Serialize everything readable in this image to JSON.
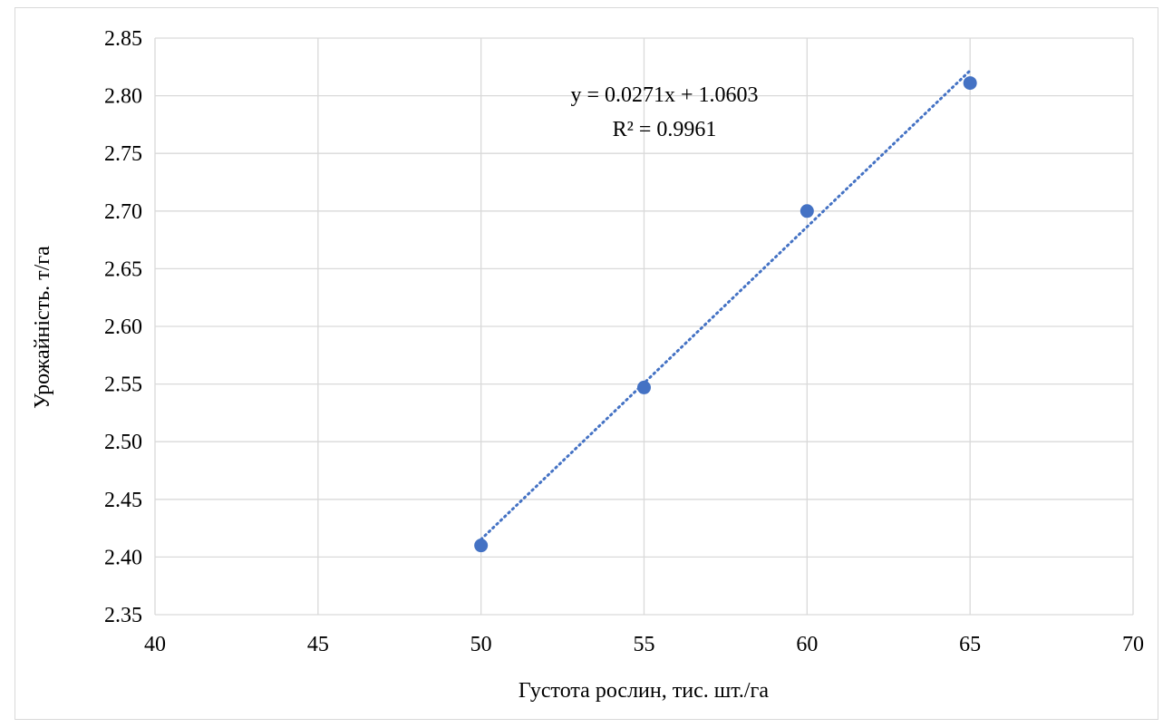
{
  "chart_data": {
    "type": "scatter",
    "title": "",
    "xlabel": "Густота рослин, тис. шт./га",
    "ylabel": "Урожайність. т/га",
    "xlim": [
      40,
      70
    ],
    "ylim": [
      2.35,
      2.85
    ],
    "x_ticks": [
      "40",
      "45",
      "50",
      "55",
      "60",
      "65",
      "70"
    ],
    "y_ticks": [
      "2.35",
      "2.40",
      "2.45",
      "2.50",
      "2.55",
      "2.60",
      "2.65",
      "2.70",
      "2.75",
      "2.80",
      "2.85"
    ],
    "x_tick_values": [
      40,
      45,
      50,
      55,
      60,
      65,
      70
    ],
    "y_tick_values": [
      2.35,
      2.4,
      2.45,
      2.5,
      2.55,
      2.6,
      2.65,
      2.7,
      2.75,
      2.8,
      2.85
    ],
    "grid": true,
    "legend": "none",
    "series": [
      {
        "x": [
          50,
          55,
          60,
          65
        ],
        "y": [
          2.41,
          2.547,
          2.7,
          2.811
        ],
        "color": "#4472C4"
      }
    ],
    "trendline": {
      "type": "linear",
      "slope": 0.0271,
      "intercept": 1.0603,
      "equation": "y = 0.0271x + 1.0603",
      "r_squared": "R² = 0.9961",
      "color": "#4472C4",
      "x_range": [
        50,
        65
      ]
    }
  }
}
